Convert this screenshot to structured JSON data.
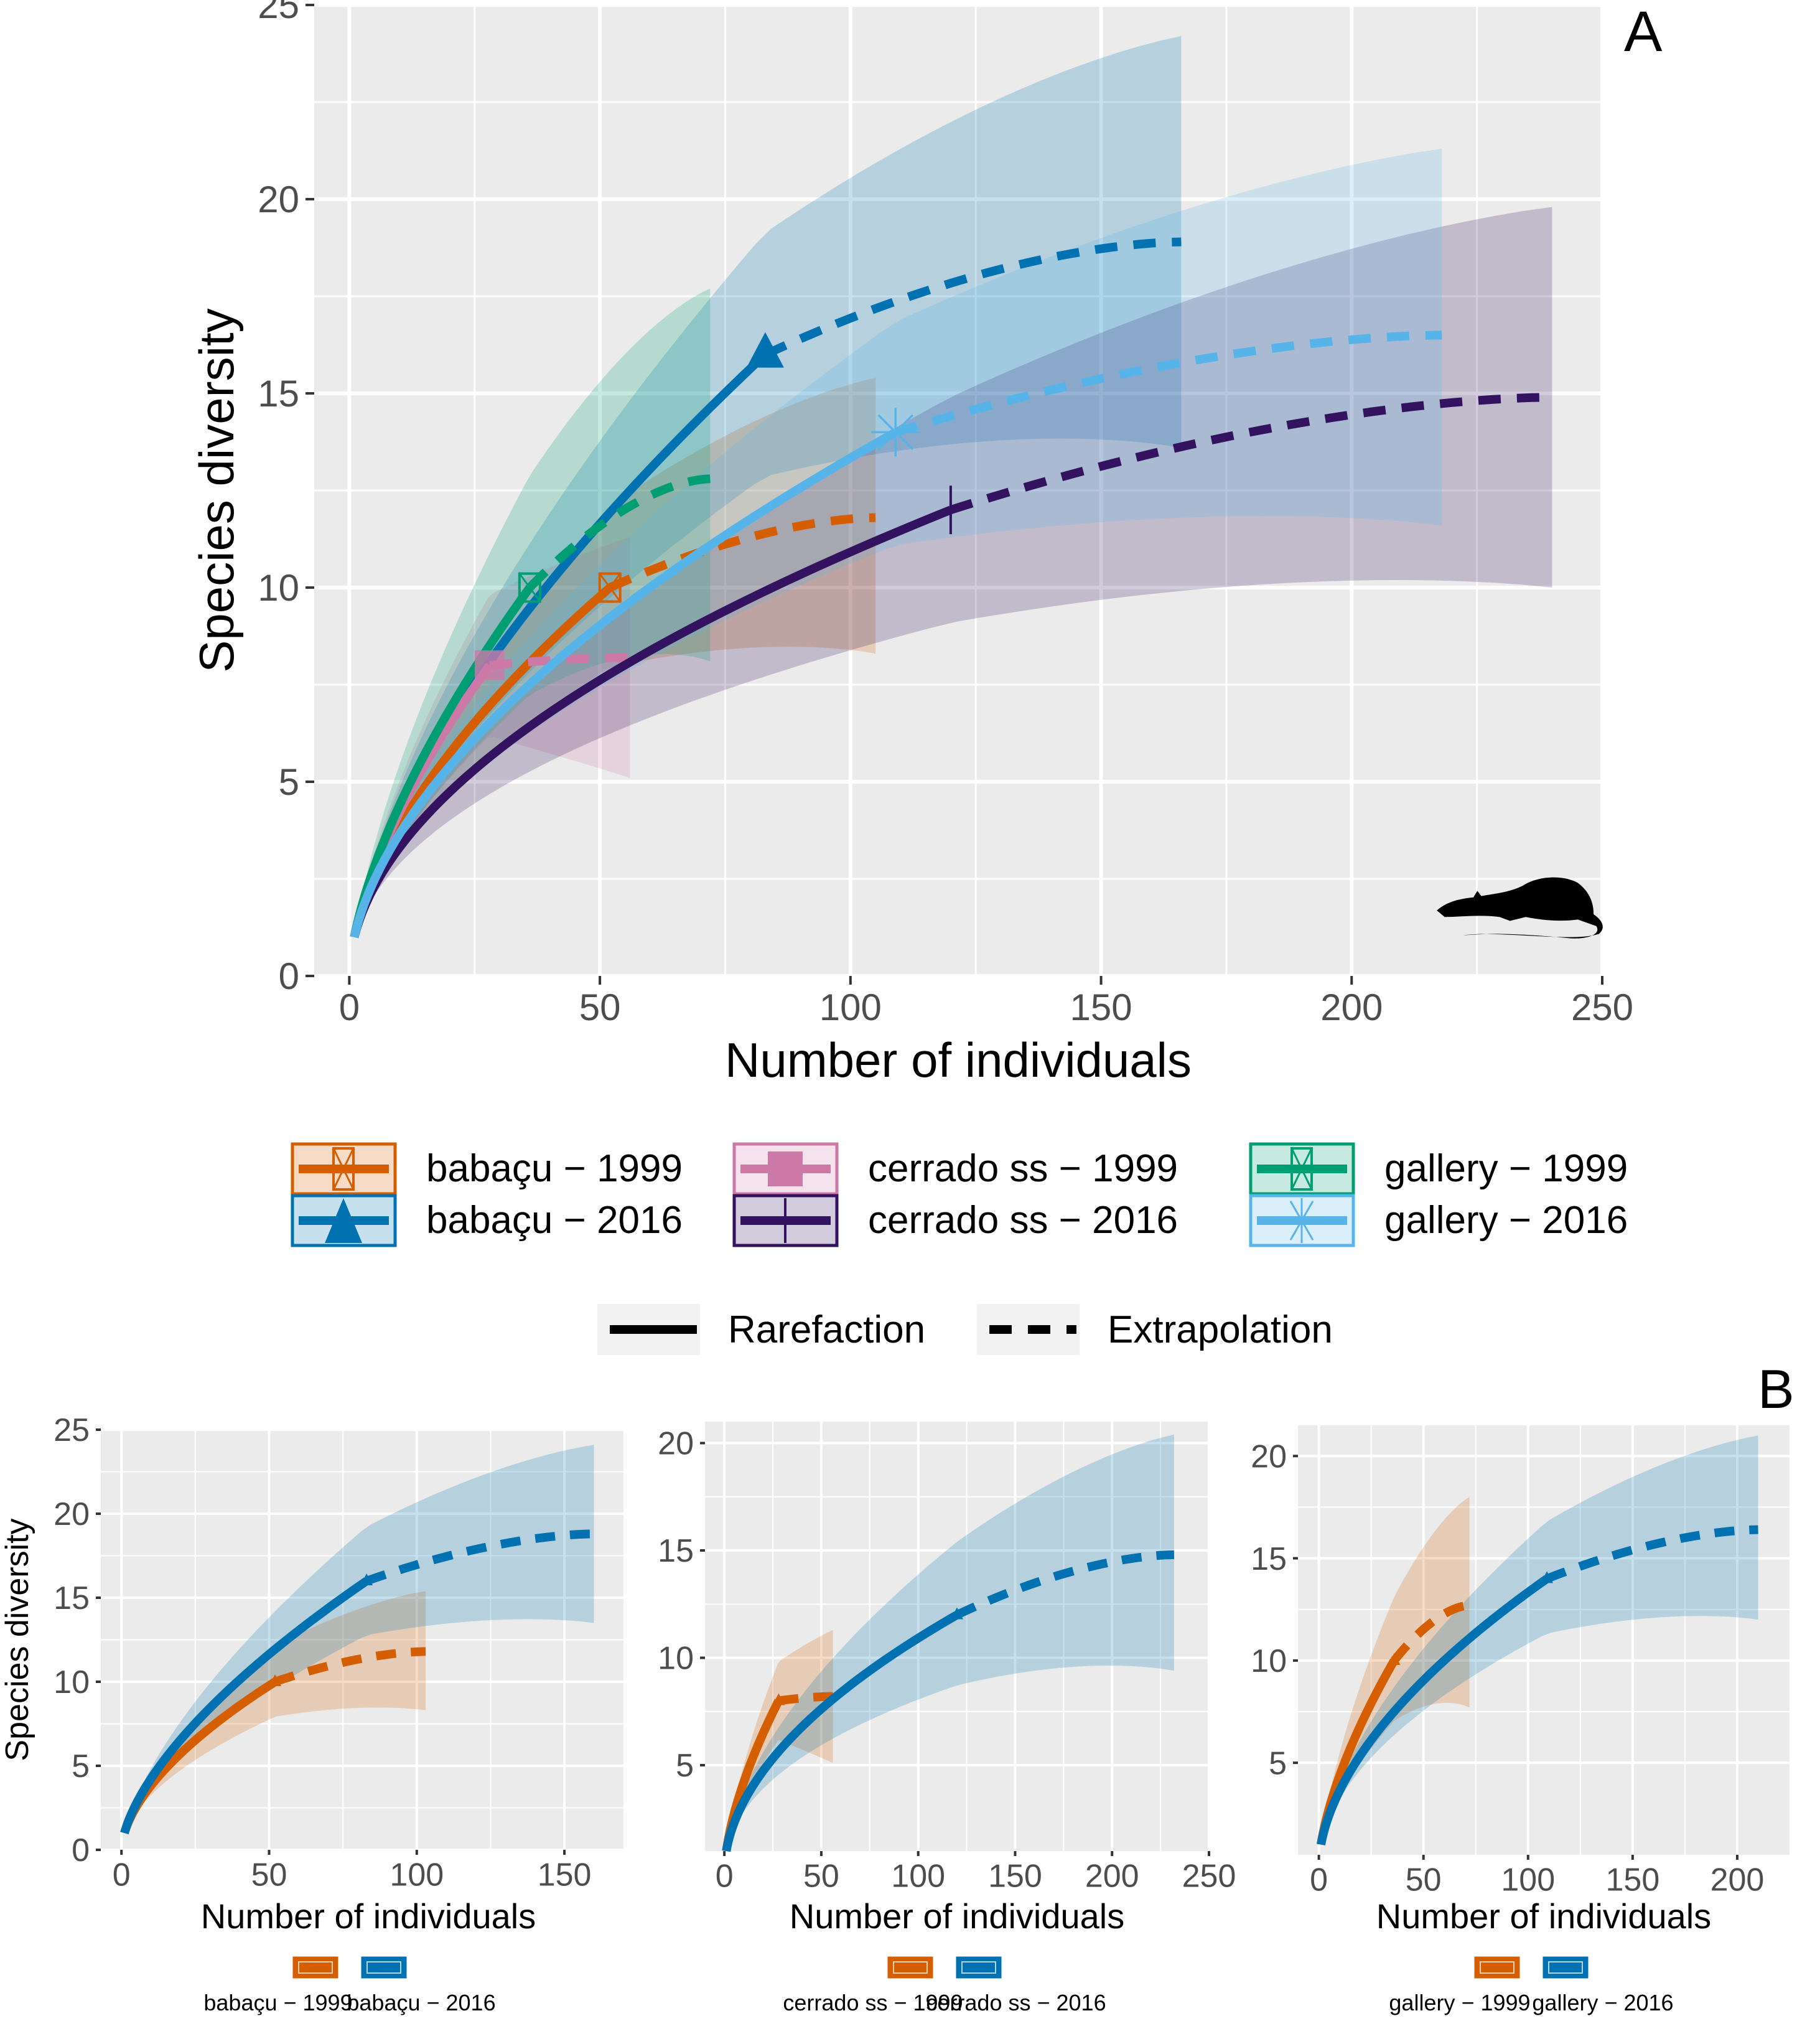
{
  "figure": {
    "panel_a_label": "A",
    "panel_b_label": "B",
    "icon": "rat-silhouette-icon"
  },
  "legend": {
    "groups": [
      {
        "label": "babaçu − 1999",
        "color": "#D55E00",
        "marker": "square-cross"
      },
      {
        "label": "babaçu − 2016",
        "color": "#0072B2",
        "marker": "triangle"
      },
      {
        "label": "cerrado ss − 1999",
        "color": "#CC79A7",
        "marker": "square-filled"
      },
      {
        "label": "cerrado ss − 2016",
        "color": "#33135F",
        "marker": "vertical-bar"
      },
      {
        "label": "gallery − 1999",
        "color": "#009E73",
        "marker": "square-cross"
      },
      {
        "label": "gallery − 2016",
        "color": "#56B4E9",
        "marker": "asterisk"
      }
    ],
    "methods": [
      {
        "label": "Rarefaction",
        "linetype": "solid"
      },
      {
        "label": "Extrapolation",
        "linetype": "dashed"
      }
    ]
  },
  "chart_data": [
    {
      "id": "A",
      "type": "line",
      "title": "",
      "xlabel": "Number of individuals",
      "ylabel": "Species diversity",
      "xlim": [
        -7,
        250
      ],
      "ylim": [
        0,
        25
      ],
      "xticks": [
        0,
        50,
        100,
        150,
        200,
        250
      ],
      "yticks": [
        0,
        5,
        10,
        15,
        20,
        25
      ],
      "grid": true,
      "legend_position": "bottom",
      "series": [
        {
          "name": "babaçu − 1999",
          "color": "#D55E00",
          "marker": "square-cross",
          "observed": {
            "n": 52,
            "S": 10
          },
          "extrapolated_end": {
            "n": 105,
            "S": 11.8
          },
          "ci_end": [
            8.3,
            15.4
          ]
        },
        {
          "name": "babaçu − 2016",
          "color": "#0072B2",
          "marker": "triangle",
          "observed": {
            "n": 83,
            "S": 16
          },
          "extrapolated_end": {
            "n": 166,
            "S": 18.9
          },
          "ci_end": [
            13.6,
            24.2
          ]
        },
        {
          "name": "cerrado ss − 1999",
          "color": "#CC79A7",
          "marker": "square-filled",
          "observed": {
            "n": 28,
            "S": 8
          },
          "extrapolated_end": {
            "n": 56,
            "S": 8.2
          },
          "ci_end": [
            5.1,
            11.3
          ]
        },
        {
          "name": "cerrado ss − 2016",
          "color": "#33135F",
          "marker": "vertical-bar",
          "observed": {
            "n": 120,
            "S": 12
          },
          "extrapolated_end": {
            "n": 240,
            "S": 14.9
          },
          "ci_end": [
            10.0,
            19.8
          ]
        },
        {
          "name": "gallery − 1999",
          "color": "#009E73",
          "marker": "square-cross",
          "observed": {
            "n": 36,
            "S": 10
          },
          "extrapolated_end": {
            "n": 72,
            "S": 12.8
          },
          "ci_end": [
            8.1,
            17.7
          ]
        },
        {
          "name": "gallery − 2016",
          "color": "#56B4E9",
          "marker": "asterisk",
          "observed": {
            "n": 109,
            "S": 14
          },
          "extrapolated_end": {
            "n": 218,
            "S": 16.5
          },
          "ci_end": [
            11.6,
            21.3
          ]
        }
      ]
    },
    {
      "id": "B1",
      "type": "line",
      "xlabel": "Number of individuals",
      "ylabel": "Species diversity",
      "xlim": [
        -7,
        170
      ],
      "ylim": [
        0,
        25
      ],
      "xticks": [
        0,
        50,
        100,
        150
      ],
      "yticks": [
        0,
        5,
        10,
        15,
        20,
        25
      ],
      "grid": true,
      "legend_position": "bottom",
      "series": [
        {
          "name": "babaçu − 1999",
          "color": "#D55E00",
          "observed": {
            "n": 52,
            "S": 10
          },
          "extrapolated_end": {
            "n": 103,
            "S": 11.8
          },
          "ci_end": [
            8.3,
            15.4
          ]
        },
        {
          "name": "babaçu − 2016",
          "color": "#0072B2",
          "observed": {
            "n": 83,
            "S": 16
          },
          "extrapolated_end": {
            "n": 160,
            "S": 18.8
          },
          "ci_end": [
            13.5,
            24.1
          ]
        }
      ]
    },
    {
      "id": "B2",
      "type": "line",
      "xlabel": "Number of individuals",
      "ylabel": "",
      "xlim": [
        -10,
        250
      ],
      "ylim": [
        1,
        21
      ],
      "xticks": [
        0,
        50,
        100,
        150,
        200,
        250
      ],
      "yticks": [
        5,
        10,
        15,
        20
      ],
      "grid": true,
      "legend_position": "bottom",
      "series": [
        {
          "name": "cerrado ss − 1999",
          "color": "#D55E00",
          "observed": {
            "n": 28,
            "S": 8
          },
          "extrapolated_end": {
            "n": 56,
            "S": 8.2
          },
          "ci_end": [
            5.1,
            11.3
          ]
        },
        {
          "name": "cerrado ss − 2016",
          "color": "#0072B2",
          "observed": {
            "n": 120,
            "S": 12
          },
          "extrapolated_end": {
            "n": 232,
            "S": 14.8
          },
          "ci_end": [
            9.4,
            20.4
          ]
        }
      ]
    },
    {
      "id": "B3",
      "type": "line",
      "xlabel": "Number of individuals",
      "ylabel": "",
      "xlim": [
        -10,
        225
      ],
      "ylim": [
        0.5,
        21.5
      ],
      "xticks": [
        0,
        50,
        100,
        150,
        200
      ],
      "yticks": [
        5,
        10,
        15,
        20
      ],
      "grid": true,
      "legend_position": "bottom",
      "series": [
        {
          "name": "gallery − 1999",
          "color": "#D55E00",
          "observed": {
            "n": 36,
            "S": 10
          },
          "extrapolated_end": {
            "n": 72,
            "S": 12.7
          },
          "ci_end": [
            7.7,
            18.0
          ]
        },
        {
          "name": "gallery − 2016",
          "color": "#0072B2",
          "observed": {
            "n": 109,
            "S": 14
          },
          "extrapolated_end": {
            "n": 210,
            "S": 16.4
          },
          "ci_end": [
            12.0,
            21.0
          ]
        }
      ]
    }
  ]
}
